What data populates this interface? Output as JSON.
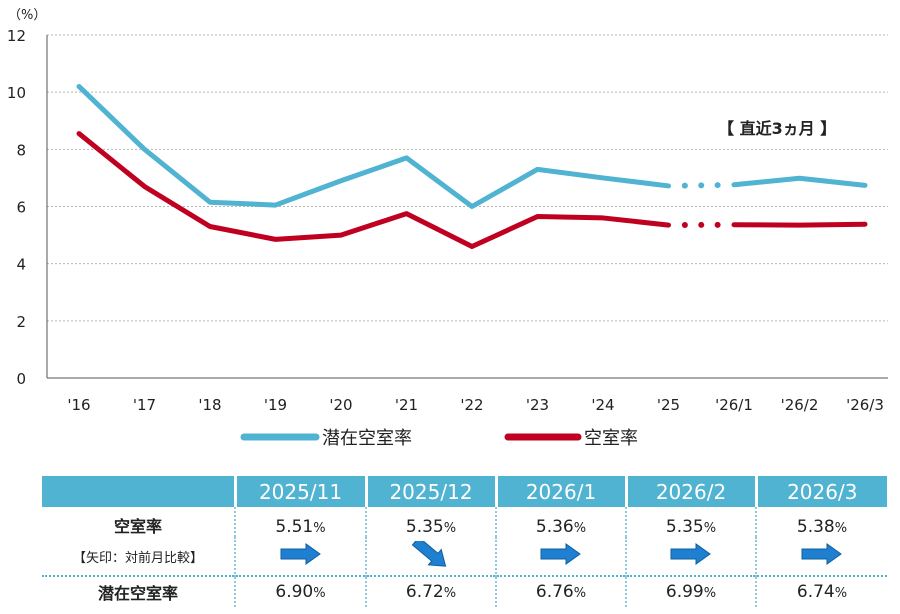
{
  "chart_data": {
    "type": "line",
    "unit_label": "（%）",
    "categories": [
      "'16",
      "'17",
      "'18",
      "'19",
      "'20",
      "'21",
      "'22",
      "'23",
      "'24",
      "'25",
      "'26/1",
      "'26/2",
      "'26/3"
    ],
    "ylim": [
      0,
      12
    ],
    "yticks": [
      0,
      2,
      4,
      6,
      8,
      10,
      12
    ],
    "annotation": "【 直近3ヵ月 】",
    "grid": true,
    "gap_between": [
      "'25",
      "'26/1"
    ],
    "series": [
      {
        "name": "潜在空室率",
        "color": "#4fb3d1",
        "values": [
          10.2,
          8.0,
          6.15,
          6.05,
          6.9,
          7.7,
          6.0,
          7.3,
          7.0,
          6.72,
          6.76,
          6.99,
          6.74
        ]
      },
      {
        "name": "空室率",
        "color": "#c00020",
        "values": [
          8.55,
          6.7,
          5.3,
          4.85,
          5.0,
          5.75,
          4.6,
          5.65,
          5.6,
          5.35,
          5.36,
          5.35,
          5.38
        ]
      }
    ]
  },
  "table": {
    "headers": [
      "2025/11",
      "2025/12",
      "2026/1",
      "2026/2",
      "2026/3"
    ],
    "vacancy_label": "空室率",
    "arrow_label": "【矢印：対前月比較】",
    "latent_label": "潜在空室率",
    "pct_sign": "%",
    "vacancy_values": [
      "5.51",
      "5.35",
      "5.36",
      "5.35",
      "5.38"
    ],
    "arrows": [
      "right",
      "down-right",
      "right",
      "right",
      "right"
    ],
    "latent_values": [
      "6.90",
      "6.72",
      "6.76",
      "6.99",
      "6.74"
    ],
    "arrow_color": "#1f7fd1"
  }
}
